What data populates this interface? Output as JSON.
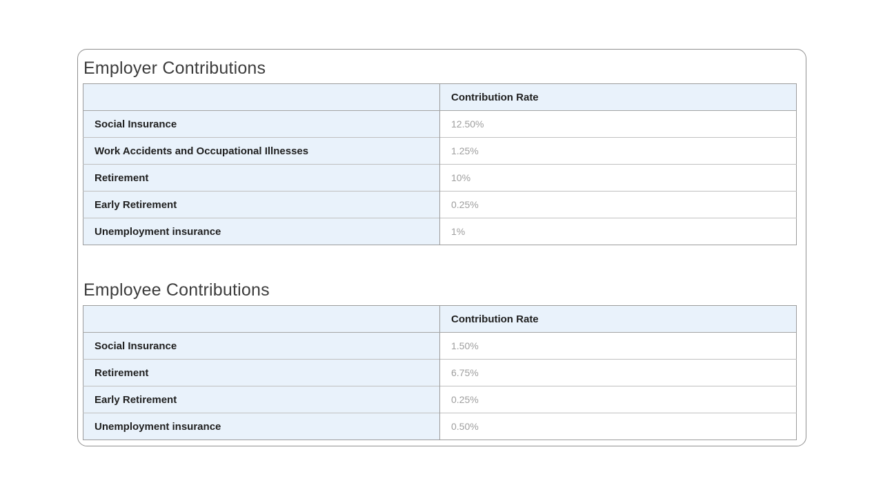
{
  "colors": {
    "accent_cell_background": "#e9f2fb",
    "card_border": "#8e8e8e",
    "table_border": "#9b9b9b",
    "row_divider": "#bfbfbf",
    "value_text": "#9e9e9e",
    "label_text": "#1f1f1f",
    "title_text": "#3c3c3c"
  },
  "sections": [
    {
      "title": "Employer Contributions",
      "rate_header": "Contribution Rate",
      "rows": [
        {
          "label": "Social Insurance",
          "rate": "12.50%"
        },
        {
          "label": "Work Accidents and Occupational Illnesses",
          "rate": "1.25%"
        },
        {
          "label": "Retirement",
          "rate": "10%"
        },
        {
          "label": "Early Retirement",
          "rate": "0.25%"
        },
        {
          "label": "Unemployment insurance",
          "rate": "1%"
        }
      ]
    },
    {
      "title": "Employee Contributions",
      "rate_header": "Contribution Rate",
      "rows": [
        {
          "label": "Social Insurance",
          "rate": "1.50%"
        },
        {
          "label": "Retirement",
          "rate": "6.75%"
        },
        {
          "label": "Early Retirement",
          "rate": "0.25%"
        },
        {
          "label": "Unemployment insurance",
          "rate": "0.50%"
        }
      ]
    }
  ]
}
